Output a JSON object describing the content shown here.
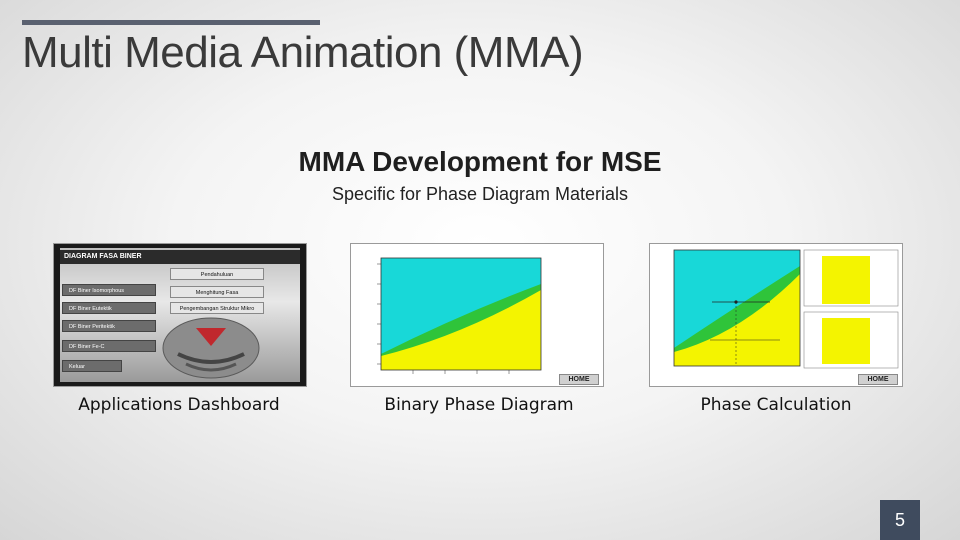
{
  "slide": {
    "title": "Multi Media Animation (MMA)",
    "heading": "MMA Development for MSE",
    "subheading": "Specific for Phase Diagram Materials",
    "page_number": "5"
  },
  "thumbnails": [
    {
      "caption": "Applications Dashboard",
      "header": "DIAGRAM FASA BINER",
      "left_menu": [
        "DF Biner Isomorphous",
        "DF Biner Eutektik",
        "DF Biner Peritektik",
        "DF Biner Fe-C",
        "Keluar"
      ],
      "right_menu": [
        "Pendahuluan",
        "Menghitung Fasa",
        "Pengembangan Struktur Mikro"
      ]
    },
    {
      "caption": "Binary Phase Diagram",
      "home_label": "HOME"
    },
    {
      "caption": "Phase Calculation",
      "home_label": "HOME"
    }
  ],
  "colors": {
    "liquid": "#18d8d8",
    "two_phase": "#2fc43a",
    "solid": "#f4f400",
    "page_badge": "#3f4b5e"
  }
}
